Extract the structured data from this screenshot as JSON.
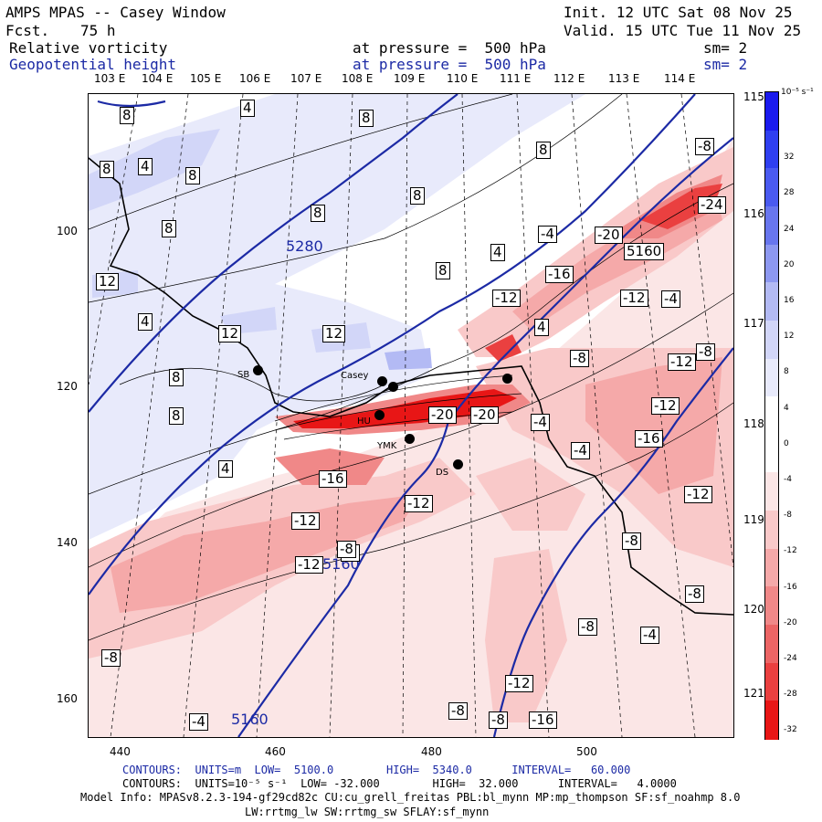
{
  "header": {
    "title": "AMPS MPAS -- Casey Window",
    "fcst_label": "Fcst.",
    "fcst_value": "75 h",
    "init": "Init. 12 UTC Sat 08 Nov 25",
    "valid": "Valid. 15 UTC Tue 11 Nov 25",
    "field1": {
      "name": "Relative vorticity",
      "level": "at pressure =  500 hPa",
      "sm": "sm= 2"
    },
    "field2": {
      "name": "Geopotential height",
      "level": "at pressure =  500 hPa",
      "sm": "sm= 2"
    }
  },
  "axes": {
    "top_lon_labels": [
      "103 E",
      "104 E",
      "105 E",
      "106 E",
      "107 E",
      "108 E",
      "109 E",
      "110 E",
      "111 E",
      "112 E",
      "113 E",
      "114 E"
    ],
    "right_lon_labels": [
      "115 E",
      "116 E",
      "117 E",
      "118 E",
      "119 E",
      "120 E",
      "121 E"
    ],
    "x_ticks": [
      "440",
      "460",
      "480",
      "500"
    ],
    "y_ticks": [
      "100",
      "120",
      "140",
      "160"
    ]
  },
  "colorbar": {
    "units": "10⁻⁵ s⁻¹",
    "labels": [
      "32",
      "28",
      "24",
      "20",
      "16",
      "12",
      "8",
      "4",
      "0",
      "-4",
      "-8",
      "-12",
      "-16",
      "-20",
      "-24",
      "-28",
      "-32"
    ],
    "colors": [
      "#1a1aee",
      "#2f3ff0",
      "#4a5af0",
      "#6876ee",
      "#8d98f0",
      "#b3baf4",
      "#d2d6f8",
      "#e8eafb",
      "#ffffff",
      "#ffffff",
      "#fbe6e6",
      "#f9c9c9",
      "#f5a9a9",
      "#f08888",
      "#ec6565",
      "#ea4040",
      "#e81616"
    ]
  },
  "height_labels": [
    "5280",
    "5160",
    "5160",
    "5160"
  ],
  "vort_labels": [
    "8",
    "4",
    "8",
    "8",
    "4",
    "8",
    "8",
    "8",
    "8",
    "8",
    "12",
    "4",
    "12",
    "12",
    "8",
    "8",
    "8",
    "4",
    "4",
    "-4",
    "-20",
    "-16",
    "-12",
    "-12",
    "-4",
    "-8",
    "-8",
    "-24",
    "5160",
    "-20",
    "-8",
    "-12",
    "-16",
    "-4",
    "-20",
    "-4",
    "-8",
    "-12",
    "-16",
    "-12",
    "-12",
    "-12",
    "-8",
    "-12",
    "-8",
    "-8",
    "-4",
    "-8",
    "-12",
    "-4",
    "-8",
    "-8",
    "-16",
    "4",
    "-8"
  ],
  "stations": [
    "SB",
    "Casey",
    "HU",
    "YMK",
    "DS"
  ],
  "footer": {
    "line1": "CONTOURS:  UNITS=m  LOW=  5100.0        HIGH=  5340.0      INTERVAL=   60.000",
    "line2": "CONTOURS:  UNITS=10⁻⁵ s⁻¹  LOW= -32.000        HIGH=  32.000      INTERVAL=   4.0000",
    "line3": "Model Info: MPASv8.2.3-194-gf29cd82c CU:cu_grell_freitas PBL:bl_mynn MP:mp_thompson SF:sf_noahmp 8.0",
    "line4": "LW:rrtmg_lw SW:rrtmg_sw SFLAY:sf_mynn"
  }
}
